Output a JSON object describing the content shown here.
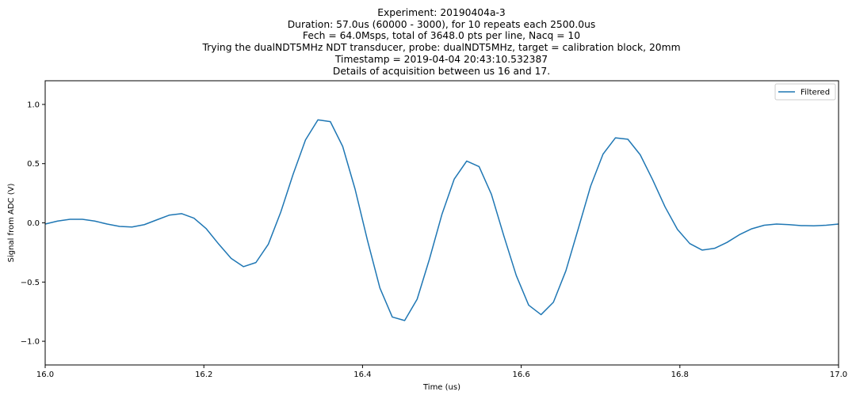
{
  "chart_data": {
    "type": "line",
    "title_lines": [
      "Experiment: 20190404a-3",
      "Duration: 57.0us (60000 - 3000), for 10 repeats each 2500.0us",
      "Fech = 64.0Msps, total of 3648.0 pts per line, Nacq = 10",
      "Trying the dualNDT5MHz NDT transducer, probe: dualNDT5MHz, target = calibration block, 20mm",
      "Timestamp = 2019-04-04 20:43:10.532387",
      "Details of acquisition between us 16 and 17."
    ],
    "xlabel": "Time (us)",
    "ylabel": "Signal from ADC (V)",
    "xlim": [
      16.0,
      17.0
    ],
    "ylim": [
      -1.2,
      1.2
    ],
    "xticks": [
      16.0,
      16.2,
      16.4,
      16.6,
      16.8,
      17.0
    ],
    "xtick_labels": [
      "16.0",
      "16.2",
      "16.4",
      "16.6",
      "16.8",
      "17.0"
    ],
    "yticks": [
      -1.0,
      -0.5,
      0.0,
      0.5,
      1.0
    ],
    "ytick_labels": [
      "−1.0",
      "−0.5",
      "0.0",
      "0.5",
      "1.0"
    ],
    "grid": false,
    "legend_position": "top-right",
    "series": [
      {
        "name": "Filtered",
        "color": "#1f77b4",
        "x": [
          16.0,
          16.0156,
          16.0313,
          16.0469,
          16.0625,
          16.0781,
          16.0938,
          16.1094,
          16.125,
          16.1406,
          16.1563,
          16.1719,
          16.1875,
          16.2031,
          16.2188,
          16.2344,
          16.25,
          16.2656,
          16.2813,
          16.2969,
          16.3125,
          16.3281,
          16.3438,
          16.3594,
          16.375,
          16.3906,
          16.4063,
          16.4219,
          16.4375,
          16.4531,
          16.4688,
          16.4844,
          16.5,
          16.5156,
          16.5313,
          16.5469,
          16.5625,
          16.5781,
          16.5938,
          16.6094,
          16.625,
          16.6406,
          16.6563,
          16.6719,
          16.6875,
          16.7031,
          16.7188,
          16.7344,
          16.75,
          16.7656,
          16.7813,
          16.7969,
          16.8125,
          16.8281,
          16.8438,
          16.8594,
          16.875,
          16.8906,
          16.9063,
          16.9219,
          16.9375,
          16.9531,
          16.9688,
          16.9844,
          17.0
        ],
        "y": [
          -0.01,
          0.015,
          0.03,
          0.03,
          0.015,
          -0.01,
          -0.03,
          -0.035,
          -0.015,
          0.025,
          0.065,
          0.078,
          0.04,
          -0.05,
          -0.18,
          -0.3,
          -0.37,
          -0.335,
          -0.18,
          0.09,
          0.41,
          0.7,
          0.87,
          0.855,
          0.645,
          0.285,
          -0.15,
          -0.55,
          -0.795,
          -0.825,
          -0.645,
          -0.305,
          0.07,
          0.37,
          0.522,
          0.475,
          0.24,
          -0.11,
          -0.445,
          -0.695,
          -0.775,
          -0.67,
          -0.405,
          -0.05,
          0.31,
          0.58,
          0.718,
          0.706,
          0.575,
          0.365,
          0.135,
          -0.055,
          -0.175,
          -0.23,
          -0.215,
          -0.165,
          -0.1,
          -0.05,
          -0.02,
          -0.01,
          -0.015,
          -0.023,
          -0.025,
          -0.02,
          -0.01
        ]
      }
    ]
  }
}
